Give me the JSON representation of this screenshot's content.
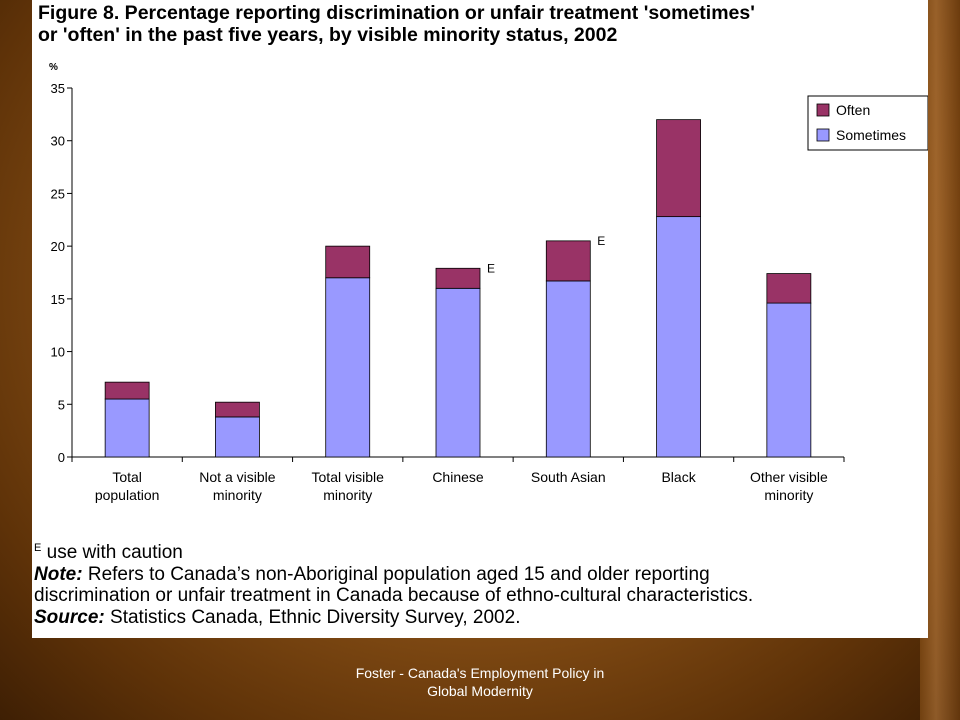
{
  "figure": {
    "title_line1": "Figure 8. Percentage reporting discrimination or unfair treatment 'sometimes'",
    "title_line2": "or 'often' in the past five years, by visible minority status, 2002"
  },
  "chart_data": {
    "type": "bar",
    "stacked": true,
    "y_unit_label": "%",
    "ylim": [
      0,
      35
    ],
    "yticks": [
      0,
      5,
      10,
      15,
      20,
      25,
      30,
      35
    ],
    "categories": [
      [
        "Total",
        "population"
      ],
      [
        "Not a visible",
        "minority"
      ],
      [
        "Total visible",
        "minority"
      ],
      [
        "Chinese"
      ],
      [
        "South Asian"
      ],
      [
        "Black"
      ],
      [
        "Other visible",
        "minority"
      ]
    ],
    "series": [
      {
        "name": "Sometimes",
        "color": "#9999ff",
        "values": [
          5.5,
          3.8,
          17.0,
          16.0,
          16.7,
          22.8,
          14.6
        ]
      },
      {
        "name": "Often",
        "color": "#993366",
        "values": [
          1.6,
          1.4,
          3.0,
          1.9,
          3.8,
          9.2,
          2.8
        ]
      }
    ],
    "flags": [
      "",
      "",
      "",
      "E",
      "E",
      "",
      ""
    ],
    "legend_position": "top-right",
    "grid": false
  },
  "notes": {
    "caution_marker": "E",
    "caution_text": " use with caution",
    "note_label": "Note:",
    "note_line1": " Refers to Canada’s non-Aboriginal population aged 15 and older reporting",
    "note_line2": "discrimination or unfair treatment in Canada because of ethno-cultural characteristics.",
    "source_label": "Source:",
    "source_text": " Statistics Canada, Ethnic Diversity Survey, 2002."
  },
  "footer": {
    "line1": "Foster - Canada's Employment Policy in",
    "line2": "Global Modernity"
  }
}
